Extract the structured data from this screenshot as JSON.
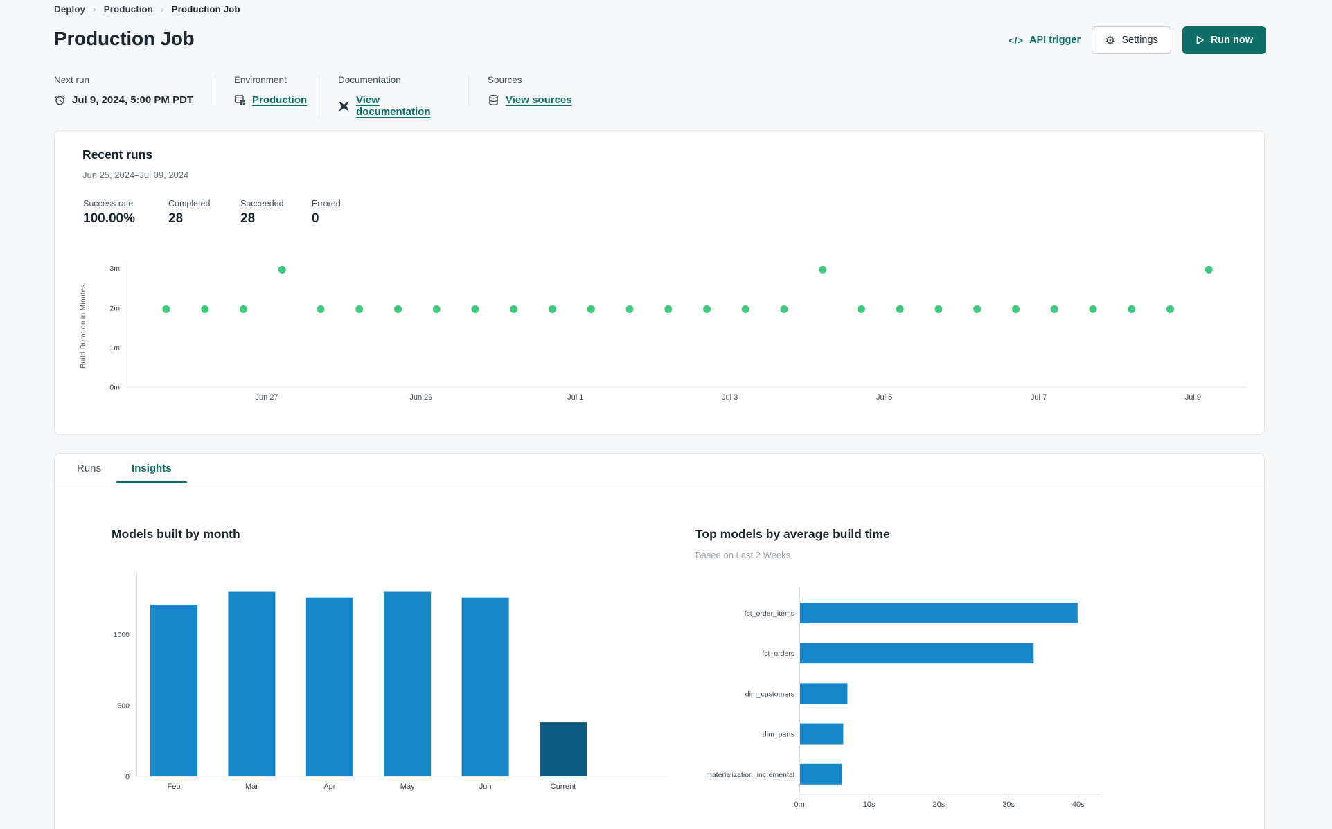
{
  "breadcrumb": {
    "separator": "›",
    "items": [
      {
        "label": "Deploy"
      },
      {
        "label": "Production"
      },
      {
        "label": "Production Job"
      }
    ]
  },
  "header": {
    "title": "Production Job",
    "api_trigger_icon": "</>",
    "api_trigger_label": "API trigger",
    "settings_icon": "⚙",
    "settings_label": "Settings",
    "run_now_label": "Run now"
  },
  "meta": {
    "next_run": {
      "label": "Next run",
      "value": "Jul 9, 2024, 5:00 PM PDT"
    },
    "environment": {
      "label": "Environment",
      "link": "Production"
    },
    "documentation": {
      "label": "Documentation",
      "link": "View documentation"
    },
    "sources": {
      "label": "Sources",
      "link": "View sources"
    }
  },
  "recent_runs": {
    "title": "Recent runs",
    "date_range": "Jun 25, 2024–Jul 09, 2024",
    "stats": [
      {
        "label": "Success rate",
        "value": "100.00%"
      },
      {
        "label": "Completed",
        "value": "28"
      },
      {
        "label": "Succeeded",
        "value": "28"
      },
      {
        "label": "Errored",
        "value": "0"
      }
    ]
  },
  "tabs": [
    {
      "label": "Runs",
      "active": false
    },
    {
      "label": "Insights",
      "active": true
    }
  ],
  "colors": {
    "accent_teal": "#0c6e66",
    "dot_green": "#3ec97d",
    "bar_blue": "#1787c9",
    "bar_dark_navy": "#0d5c80"
  },
  "chart_data": [
    {
      "id": "build-duration-scatter",
      "type": "scatter",
      "ylabel": "Build Duration in Minutes",
      "y_ticks": [
        "0m",
        "1m",
        "2m",
        "3m"
      ],
      "ylim_minutes": [
        0,
        3.3
      ],
      "x_range": [
        "Jun 25, 2024",
        "Jul 09, 2024"
      ],
      "x_tick_labels": [
        "Jun 27",
        "Jun 29",
        "Jul 1",
        "Jul 3",
        "Jul 5",
        "Jul 7",
        "Jul 9"
      ],
      "runs_per_day": 2,
      "point_color": "#3ec97d",
      "points_minutes": [
        1.97,
        1.97,
        1.97,
        2.97,
        1.97,
        1.97,
        1.97,
        1.97,
        1.97,
        1.97,
        1.97,
        1.97,
        1.97,
        1.97,
        1.97,
        1.97,
        1.97,
        2.97,
        1.97,
        1.97,
        1.97,
        1.97,
        1.97,
        1.97,
        1.97,
        1.97,
        1.97,
        2.97
      ]
    },
    {
      "id": "models-built-by-month",
      "type": "bar",
      "title": "Models built by month",
      "categories": [
        "Feb",
        "Mar",
        "Apr",
        "May",
        "Jun",
        "Current"
      ],
      "values": [
        1210,
        1300,
        1260,
        1300,
        1260,
        380
      ],
      "y_ticks": [
        0,
        500,
        1000
      ],
      "ylim": [
        0,
        1350
      ],
      "grid": false,
      "bar_color": "#1787c9",
      "current_bar_color": "#0d5c80"
    },
    {
      "id": "top-models-by-avg-build-time",
      "type": "bar-horizontal",
      "title": "Top models by average build time",
      "subtitle": "Based on Last 2 Weeks",
      "categories": [
        "fct_order_items",
        "fct_orders",
        "dim_customers",
        "dim_parts",
        "materialization_incremental"
      ],
      "values_seconds": [
        39.8,
        33.5,
        6.8,
        6.2,
        6.0
      ],
      "x_ticks": [
        "0m",
        "10s",
        "20s",
        "30s",
        "40s"
      ],
      "xlim_seconds": [
        0,
        43
      ],
      "grid": false,
      "bar_color": "#1787c9"
    }
  ]
}
